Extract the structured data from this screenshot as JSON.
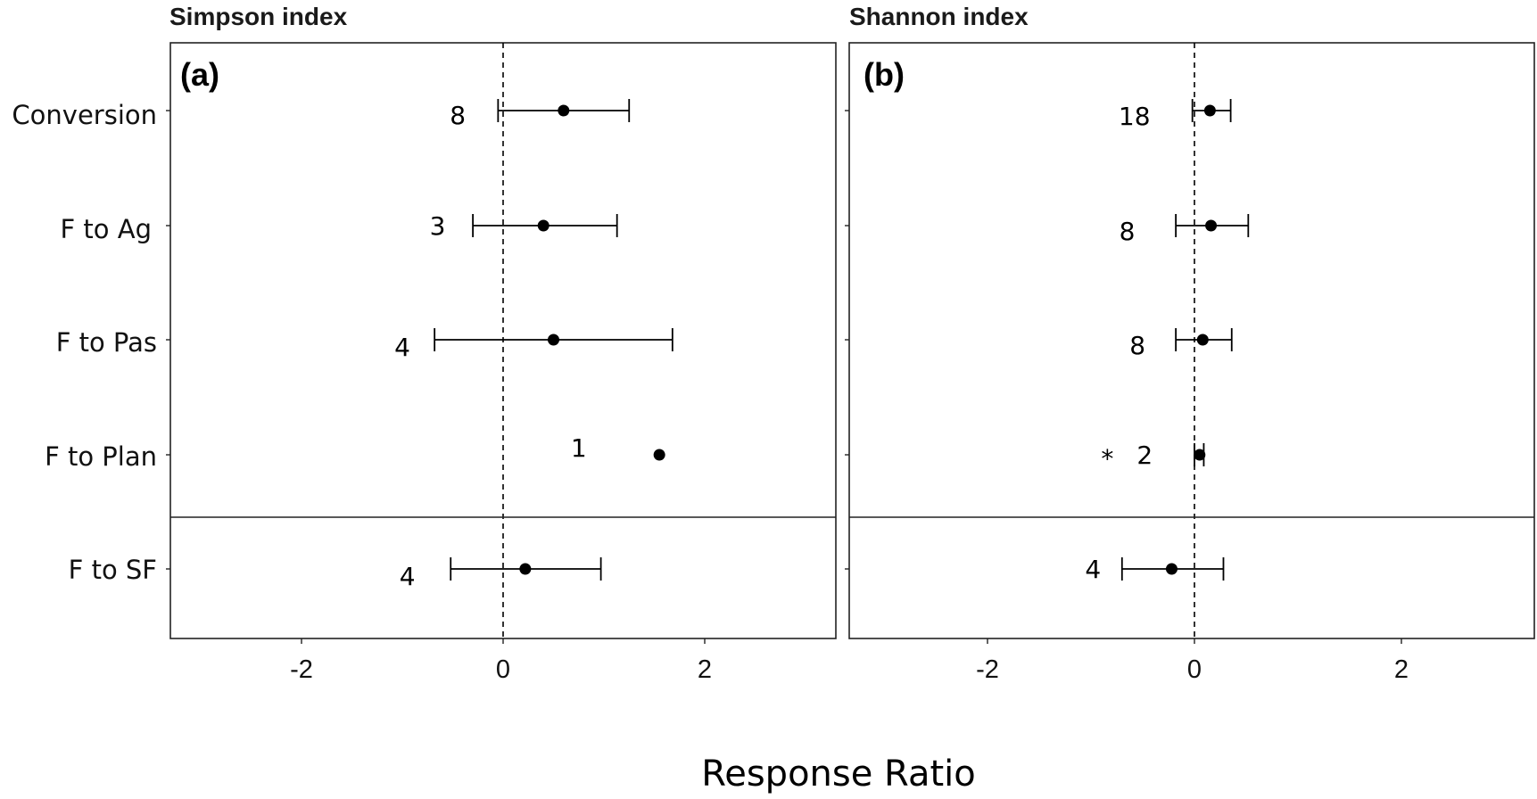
{
  "chart_data": {
    "type": "forest",
    "xlabel": "Response Ratio",
    "categories": [
      "Conversion",
      "F to Ag",
      "F to Pas",
      "F to Plan",
      "F to SF"
    ],
    "xticks": [
      -2,
      0,
      2
    ],
    "xlim": [
      -3.2,
      3.2
    ],
    "reference_line": 0,
    "panels": [
      {
        "title": "Simpson index",
        "letter": "(a)",
        "points": [
          {
            "category": "Conversion",
            "estimate": 0.6,
            "lower": -0.05,
            "upper": 1.25,
            "n": "8",
            "n_x": -0.45,
            "n_dy": 5,
            "significant": false
          },
          {
            "category": "F to Ag",
            "estimate": 0.4,
            "lower": -0.3,
            "upper": 1.13,
            "n": "3",
            "n_x": -0.65,
            "n_dy": 0,
            "significant": false
          },
          {
            "category": "F to Pas",
            "estimate": 0.5,
            "lower": -0.68,
            "upper": 1.68,
            "n": "4",
            "n_x": -1.0,
            "n_dy": 8,
            "significant": false
          },
          {
            "category": "F to Plan",
            "estimate": 1.55,
            "lower": null,
            "upper": null,
            "n": "1",
            "n_x": 0.75,
            "n_dy": -8,
            "significant": false
          },
          {
            "category": "F to SF",
            "estimate": 0.22,
            "lower": -0.52,
            "upper": 0.97,
            "n": "4",
            "n_x": -0.95,
            "n_dy": 8,
            "significant": false
          }
        ]
      },
      {
        "title": "Shannon index",
        "letter": "(b)",
        "points": [
          {
            "category": "Conversion",
            "estimate": 0.15,
            "lower": -0.02,
            "upper": 0.35,
            "n": "18",
            "n_x": -0.58,
            "n_dy": 6,
            "significant": false
          },
          {
            "category": "F to Ag",
            "estimate": 0.16,
            "lower": -0.18,
            "upper": 0.52,
            "n": "8",
            "n_x": -0.65,
            "n_dy": 6,
            "significant": false
          },
          {
            "category": "F to Pas",
            "estimate": 0.08,
            "lower": -0.18,
            "upper": 0.36,
            "n": "8",
            "n_x": -0.55,
            "n_dy": 6,
            "significant": false
          },
          {
            "category": "F to Plan",
            "estimate": 0.05,
            "lower": 0.0,
            "upper": 0.09,
            "n": "2",
            "n_x": -0.48,
            "n_dy": 0,
            "significant": true
          },
          {
            "category": "F to SF",
            "estimate": -0.22,
            "lower": -0.7,
            "upper": 0.28,
            "n": "4",
            "n_x": -0.98,
            "n_dy": 0,
            "significant": false
          }
        ]
      }
    ],
    "significance_marker": "*"
  }
}
